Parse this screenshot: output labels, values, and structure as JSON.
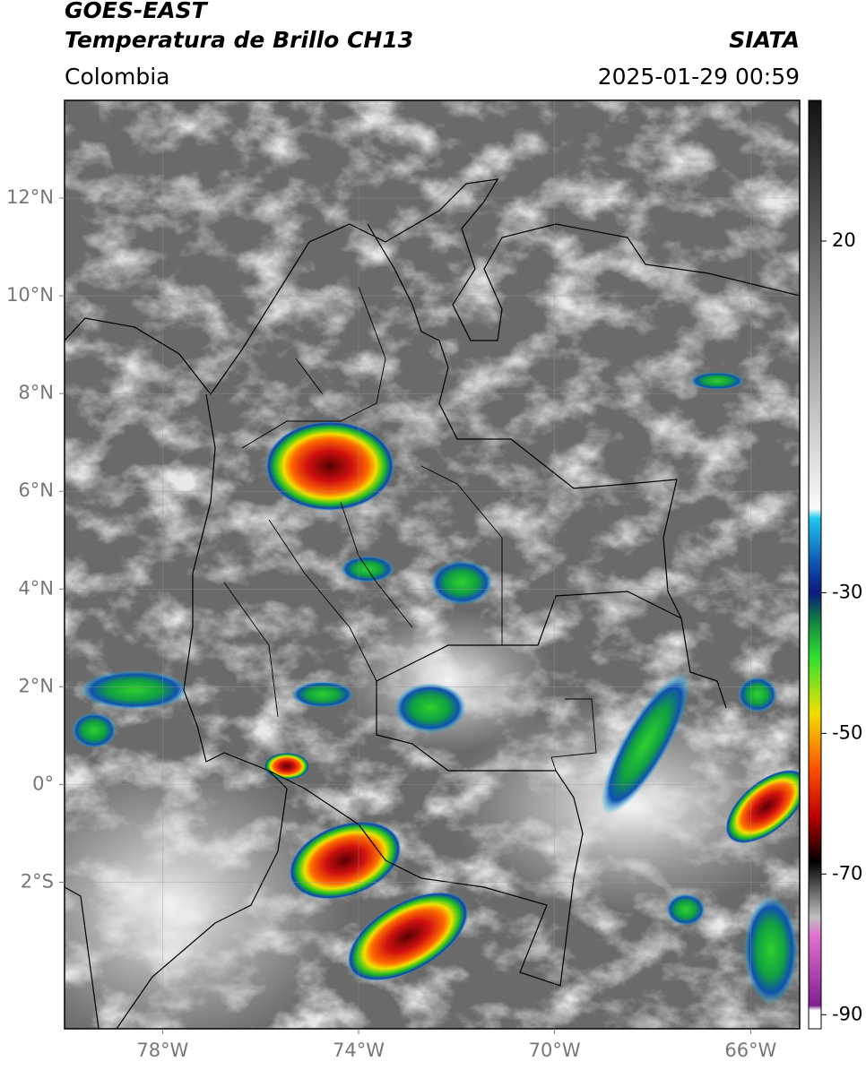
{
  "header": {
    "title": "GOES-EAST",
    "subtitle": "Temperatura de Brillo CH13",
    "source": "SIATA",
    "region": "Colombia",
    "datetime": "2025-01-29 00:59"
  },
  "map": {
    "xlim": [
      -80,
      -65
    ],
    "ylim": [
      -5,
      14
    ],
    "xticks": [
      {
        "value": -78,
        "label": "78°W"
      },
      {
        "value": -74,
        "label": "74°W"
      },
      {
        "value": -70,
        "label": "70°W"
      },
      {
        "value": -66,
        "label": "66°W"
      }
    ],
    "yticks": [
      {
        "value": 12,
        "label": "12°N"
      },
      {
        "value": 10,
        "label": "10°N"
      },
      {
        "value": 8,
        "label": "8°N"
      },
      {
        "value": 6,
        "label": "6°N"
      },
      {
        "value": 4,
        "label": "4°N"
      },
      {
        "value": 2,
        "label": "2°N"
      },
      {
        "value": 0,
        "label": "0°"
      },
      {
        "value": -2,
        "label": "2°S"
      }
    ],
    "grid": true
  },
  "colorbar": {
    "lim": [
      -92,
      40
    ],
    "ticks": [
      20,
      -30,
      -50,
      -70,
      -90
    ]
  }
}
